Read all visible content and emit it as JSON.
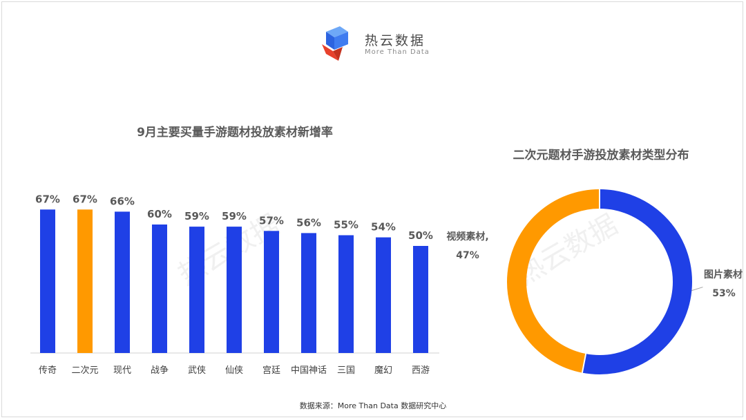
{
  "logo": {
    "name": "热云数据",
    "tagline": "More Than Data"
  },
  "source": "数据来源：More Than Data 数据研究中心",
  "colors": {
    "blue": "#1f40e6",
    "orange": "#ff9900",
    "title": "#5a5a5a",
    "label": "#595959"
  },
  "chart_data": [
    {
      "type": "bar",
      "title": "9月主要买量手游题材投放素材新增率",
      "categories": [
        "传奇",
        "二次元",
        "现代",
        "战争",
        "武侠",
        "仙侠",
        "宫廷",
        "中国神话",
        "三国",
        "魔幻",
        "西游"
      ],
      "values": [
        67,
        67,
        66,
        60,
        59,
        59,
        57,
        56,
        55,
        54,
        50
      ],
      "value_labels": [
        "67%",
        "67%",
        "66%",
        "60%",
        "59%",
        "59%",
        "57%",
        "56%",
        "55%",
        "54%",
        "50%"
      ],
      "highlight_index": 1,
      "unit": "%",
      "ylim": [
        0,
        100
      ],
      "grid": false
    },
    {
      "type": "pie",
      "donut": true,
      "title": "二次元题材手游投放素材类型分布",
      "slices": [
        {
          "label": "图片素材",
          "value": 53,
          "pct_label": "53%",
          "color": "#1f40e6"
        },
        {
          "label": "视频素材,",
          "value": 47,
          "pct_label": "47%",
          "color": "#ff9900"
        }
      ]
    }
  ]
}
